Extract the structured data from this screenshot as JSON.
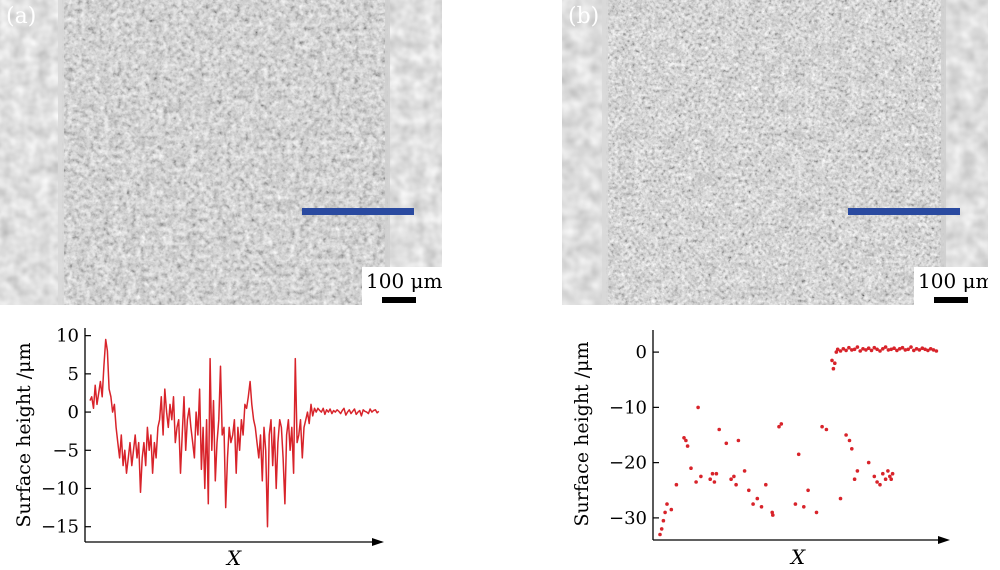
{
  "panels": [
    {
      "id": "a",
      "label": "(a)",
      "scale_label": "100 μm",
      "chart_data": {
        "type": "line",
        "ylabel": "Surface height /μm",
        "xlabel": "X",
        "ylim": [
          -17,
          11
        ],
        "yticks": [
          10,
          5,
          0,
          -5,
          -10,
          -15
        ],
        "ytick_labels": [
          "10",
          "5",
          "0",
          "−5",
          "−10",
          "−15"
        ],
        "series": [
          {
            "color": "#d8232a",
            "style": "line",
            "x": [
              0.0,
              0.006,
              0.012,
              0.018,
              0.024,
              0.03,
              0.036,
              0.042,
              0.048,
              0.054,
              0.06,
              0.066,
              0.072,
              0.078,
              0.084,
              0.09,
              0.096,
              0.102,
              0.108,
              0.114,
              0.12,
              0.126,
              0.132,
              0.138,
              0.144,
              0.15,
              0.156,
              0.162,
              0.168,
              0.174,
              0.18,
              0.186,
              0.192,
              0.198,
              0.204,
              0.21,
              0.216,
              0.222,
              0.228,
              0.234,
              0.24,
              0.246,
              0.252,
              0.258,
              0.264,
              0.27,
              0.276,
              0.282,
              0.288,
              0.294,
              0.3,
              0.306,
              0.312,
              0.318,
              0.324,
              0.33,
              0.336,
              0.342,
              0.348,
              0.354,
              0.36,
              0.366,
              0.372,
              0.378,
              0.384,
              0.39,
              0.396,
              0.402,
              0.408,
              0.414,
              0.42,
              0.426,
              0.432,
              0.438,
              0.444,
              0.45,
              0.456,
              0.462,
              0.468,
              0.474,
              0.48,
              0.486,
              0.492,
              0.498,
              0.504,
              0.51,
              0.516,
              0.522,
              0.528,
              0.534,
              0.54,
              0.546,
              0.552,
              0.558,
              0.564,
              0.57,
              0.576,
              0.582,
              0.588,
              0.594,
              0.6,
              0.606,
              0.612,
              0.618,
              0.624,
              0.63,
              0.636,
              0.642,
              0.648,
              0.654,
              0.66,
              0.666,
              0.672,
              0.678,
              0.684,
              0.69,
              0.696,
              0.702,
              0.708,
              0.714,
              0.72,
              0.726,
              0.732,
              0.738,
              0.744,
              0.75,
              0.756,
              0.762,
              0.768,
              0.774,
              0.78,
              0.786,
              0.792,
              0.798,
              0.804,
              0.81,
              0.816,
              0.822,
              0.828,
              0.834,
              0.84,
              0.846,
              0.852,
              0.858,
              0.864,
              0.87,
              0.876,
              0.882,
              0.888,
              0.894,
              0.9,
              0.906,
              0.912,
              0.918,
              0.924,
              0.93,
              0.936,
              0.942,
              0.948,
              0.954,
              0.96,
              0.966,
              0.972,
              0.978,
              0.984,
              0.99,
              0.996
            ],
            "y": [
              1.5,
              2.0,
              0.5,
              3.5,
              1.0,
              2.5,
              4.0,
              2.0,
              6.0,
              9.5,
              8.0,
              3.0,
              2.0,
              0.0,
              1.0,
              -2.0,
              -4.0,
              -6.0,
              -3.0,
              -7.0,
              -5.0,
              -8.0,
              -6.0,
              -4.0,
              -7.0,
              -5.0,
              -3.0,
              -6.0,
              -4.0,
              -10.5,
              -6.0,
              -4.0,
              -7.0,
              -2.0,
              -5.0,
              -3.0,
              -8.0,
              -4.0,
              -6.0,
              -2.0,
              -1.0,
              2.0,
              -3.0,
              3.0,
              0.0,
              -2.0,
              1.0,
              -1.0,
              2.0,
              -4.0,
              -2.0,
              -1.0,
              -8.0,
              -3.0,
              2.0,
              -5.0,
              -1.0,
              0.5,
              -2.0,
              -4.0,
              -6.0,
              0.0,
              -3.0,
              3.0,
              -7.5,
              -2.0,
              -10.0,
              -1.0,
              -12.0,
              7.0,
              -5.0,
              1.5,
              -9.0,
              -4.0,
              -1.0,
              6.0,
              -3.0,
              -2.0,
              -12.5,
              -6.0,
              -2.0,
              -4.0,
              -3.0,
              -1.0,
              -8.0,
              -2.0,
              -5.0,
              -1.0,
              -3.0,
              1.0,
              0.5,
              2.0,
              4.0,
              1.0,
              -1.0,
              -2.0,
              -4.0,
              -6.0,
              -3.0,
              -9.0,
              -2.0,
              -5.0,
              -15.0,
              -3.0,
              -1.0,
              -7.0,
              -2.0,
              -10.0,
              -4.0,
              -1.0,
              -2.0,
              -6.0,
              -12.0,
              -3.0,
              -1.0,
              -5.0,
              -2.0,
              -8.0,
              7.0,
              -4.0,
              -3.0,
              -1.0,
              -6.0,
              -2.0,
              -1.0,
              0.0,
              -1.5,
              1.0,
              -0.5,
              0.5,
              0.0,
              0.5,
              0.2,
              0.0,
              0.5,
              -0.3,
              0.3,
              0.0,
              0.4,
              -0.2,
              0.2,
              0.0,
              0.3,
              0.1,
              -0.2,
              0.2,
              0.5,
              -0.4,
              0.0,
              0.3,
              -0.2,
              0.1,
              0.4,
              -0.3,
              0.0,
              0.2,
              -0.5,
              0.3,
              0.1,
              0.0,
              -0.2,
              0.4,
              0.0,
              0.2,
              0.3,
              -0.1,
              0.1
            ]
          }
        ]
      }
    },
    {
      "id": "b",
      "label": "(b)",
      "scale_label": "100 μm",
      "chart_data": {
        "type": "scatter",
        "ylabel": "Surface height /μm",
        "xlabel": "X",
        "ylim": [
          -34,
          4
        ],
        "yticks": [
          0,
          -10,
          -20,
          -30
        ],
        "ytick_labels": [
          "0",
          "−10",
          "−20",
          "−30"
        ],
        "series": [
          {
            "color": "#d8232a",
            "style": "points",
            "x": [
              0.0,
              0.006,
              0.012,
              0.018,
              0.025,
              0.04,
              0.058,
              0.085,
              0.092,
              0.098,
              0.11,
              0.128,
              0.135,
              0.145,
              0.178,
              0.186,
              0.193,
              0.2,
              0.21,
              0.235,
              0.252,
              0.262,
              0.27,
              0.278,
              0.3,
              0.315,
              0.33,
              0.345,
              0.36,
              0.375,
              0.398,
              0.4,
              0.422,
              0.43,
              0.48,
              0.492,
              0.51,
              0.525,
              0.555,
              0.575,
              0.59,
              0.64,
              0.66,
              0.672,
              0.68,
              0.69,
              0.7,
              0.74,
              0.76,
              0.77,
              0.78,
              0.79,
              0.8,
              0.808,
              0.815,
              0.82,
              0.825
            ],
            "y": [
              -33.0,
              -32.0,
              -30.5,
              -29.0,
              -27.5,
              -28.5,
              -24.0,
              -15.5,
              -16.0,
              -17.0,
              -21.0,
              -23.5,
              -10.0,
              -22.5,
              -23.0,
              -22.0,
              -23.5,
              -22.0,
              -14.0,
              -16.5,
              -23.0,
              -22.5,
              -24.0,
              -16.0,
              -21.5,
              -25.0,
              -27.5,
              -26.5,
              -28.0,
              -24.0,
              -29.0,
              -29.5,
              -13.5,
              -13.0,
              -27.5,
              -18.5,
              -28.0,
              -25.0,
              -29.0,
              -13.5,
              -14.0,
              -26.5,
              -15.0,
              -16.0,
              -17.5,
              -23.0,
              -21.5,
              -20.0,
              -22.5,
              -23.5,
              -24.0,
              -22.0,
              -23.0,
              -21.5,
              -22.5,
              -23.0,
              -22.0
            ]
          },
          {
            "color": "#d8232a",
            "style": "points",
            "x": [
              0.61,
              0.615,
              0.62,
              0.625,
              0.63,
              0.64,
              0.65,
              0.66,
              0.67,
              0.68,
              0.69,
              0.7,
              0.71,
              0.72,
              0.73,
              0.74,
              0.75,
              0.76,
              0.77,
              0.78,
              0.79,
              0.8,
              0.81,
              0.82,
              0.83,
              0.84,
              0.85,
              0.86,
              0.87,
              0.88,
              0.89,
              0.9,
              0.91,
              0.92,
              0.93,
              0.94,
              0.95,
              0.96,
              0.97,
              0.98
            ],
            "y": [
              -1.5,
              -3.0,
              -2.0,
              0.0,
              0.5,
              0.2,
              0.6,
              0.3,
              0.8,
              0.4,
              0.5,
              0.9,
              0.2,
              0.6,
              0.4,
              0.7,
              0.3,
              0.8,
              0.5,
              0.2,
              0.6,
              0.9,
              0.4,
              0.5,
              0.7,
              0.3,
              0.6,
              0.8,
              0.4,
              0.5,
              0.9,
              0.3,
              0.6,
              0.4,
              0.7,
              0.5,
              0.3,
              0.6,
              0.4,
              0.2
            ]
          }
        ]
      }
    }
  ]
}
